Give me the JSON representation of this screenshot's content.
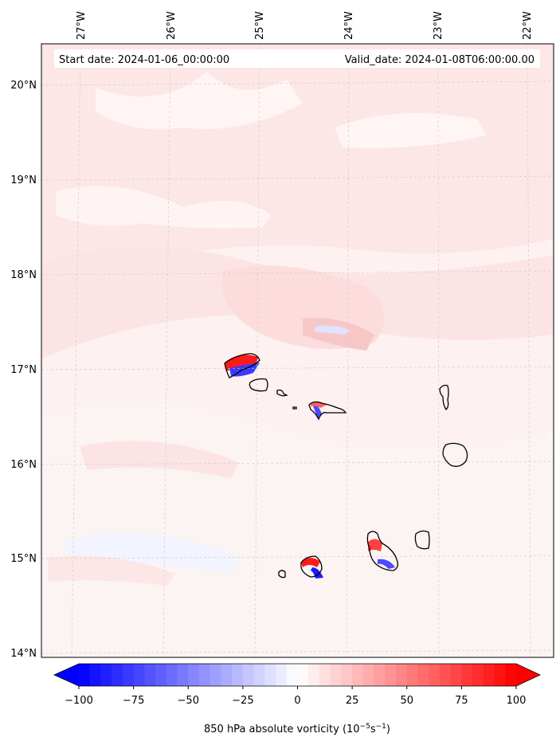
{
  "map": {
    "start_date_label": "Start date: 2024-01-06_00:00:00",
    "valid_date_label": "Valid_date: 2024-01-08T06:00:00.00",
    "lon_labels": [
      "27°W",
      "26°W",
      "25°W",
      "24°W",
      "23°W",
      "22°W"
    ],
    "lat_labels": [
      "20°N",
      "19°N",
      "18°N",
      "17°N",
      "16°N",
      "15°N",
      "14°N"
    ],
    "field": "850 hPa absolute vorticity",
    "background_color": "#fdeeee",
    "gridline_color": "#cfcfcf",
    "island_outline_color": "#000000"
  },
  "colorbar": {
    "label_text": "850 hPa absolute vorticity (10",
    "label_exp1": "−5",
    "label_mid": "s",
    "label_exp2": "−1",
    "label_close": ")",
    "tick_labels": [
      "−100",
      "−75",
      "−50",
      "−25",
      "0",
      "25",
      "50",
      "75",
      "100"
    ],
    "min": -100,
    "max": 100,
    "extend": "both",
    "colors": {
      "negative": "#0000ff",
      "neutral": "#ffffff",
      "positive": "#ff0000"
    }
  }
}
